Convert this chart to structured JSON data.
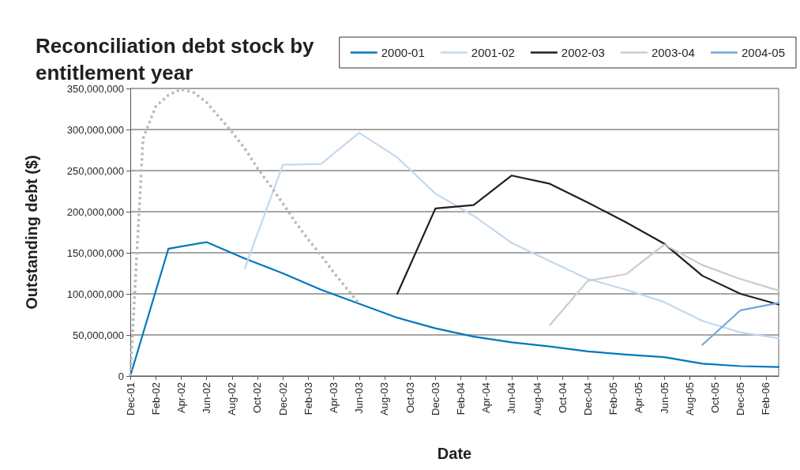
{
  "chart_data": {
    "type": "line",
    "title": "Reconciliation debt stock by entitlement year",
    "xlabel": "Date",
    "ylabel": "Outstanding debt ($)",
    "categories": [
      "Dec-01",
      null,
      "Feb-02",
      null,
      "Apr-02",
      null,
      "Jun-02",
      null,
      "Aug-02",
      null,
      "Oct-02",
      null,
      "Dec-02",
      null,
      "Feb-03",
      null,
      "Apr-03",
      null,
      "Jun-03",
      null,
      "Aug-03",
      null,
      "Oct-03",
      null,
      "Dec-03",
      null,
      "Feb-04",
      null,
      "Apr-04",
      null,
      "Jun-04",
      null,
      "Aug-04",
      null,
      "Oct-04",
      null,
      "Dec-04",
      null,
      "Feb-05",
      null,
      "Apr-05",
      null,
      "Jun-05",
      null,
      "Aug-05",
      null,
      "Oct-05",
      null,
      "Dec-05",
      null,
      "Feb-06",
      null
    ],
    "series": [
      {
        "name": "2000-01",
        "color": "#0077c0",
        "values": [
          0,
          null,
          null,
          155000000,
          null,
          null,
          163000000,
          null,
          null,
          143000000,
          null,
          null,
          125000000,
          null,
          null,
          105000000,
          null,
          null,
          88000000,
          null,
          null,
          71000000,
          null,
          null,
          58000000,
          null,
          null,
          48000000,
          null,
          null,
          41000000,
          null,
          null,
          36000000,
          null,
          null,
          30000000,
          null,
          null,
          26000000,
          null,
          null,
          23000000,
          null,
          null,
          15000000,
          null,
          null,
          12000000,
          null,
          null,
          11000000
        ]
      },
      {
        "name": "2001-02",
        "color": "#c5d8ee",
        "values": [
          null,
          null,
          null,
          null,
          null,
          null,
          null,
          null,
          null,
          131000000,
          null,
          null,
          257000000,
          null,
          null,
          258000000,
          null,
          null,
          296000000,
          null,
          null,
          266000000,
          null,
          null,
          222000000,
          null,
          null,
          195000000,
          null,
          null,
          162000000,
          null,
          null,
          140000000,
          null,
          null,
          118000000,
          null,
          null,
          105000000,
          null,
          null,
          90000000,
          null,
          null,
          67000000,
          null,
          null,
          53000000,
          null,
          null,
          46000000
        ]
      },
      {
        "name": "2002-03",
        "color": "#231f20",
        "values": [
          null,
          null,
          null,
          null,
          null,
          null,
          null,
          null,
          null,
          null,
          null,
          null,
          null,
          null,
          null,
          null,
          null,
          null,
          null,
          null,
          null,
          100000000,
          null,
          null,
          204000000,
          null,
          null,
          208000000,
          null,
          null,
          244000000,
          null,
          null,
          234000000,
          null,
          null,
          211000000,
          null,
          null,
          187000000,
          null,
          null,
          161000000,
          null,
          null,
          122000000,
          null,
          null,
          100000000,
          null,
          null,
          87000000
        ]
      },
      {
        "name": "2003-04",
        "color": "#cccccc",
        "values": [
          null,
          null,
          null,
          null,
          null,
          null,
          null,
          null,
          null,
          null,
          null,
          null,
          null,
          null,
          null,
          null,
          null,
          null,
          null,
          null,
          null,
          null,
          null,
          null,
          null,
          null,
          null,
          null,
          null,
          null,
          null,
          null,
          null,
          62000000,
          null,
          null,
          116000000,
          null,
          null,
          124000000,
          null,
          null,
          160000000,
          null,
          null,
          135000000,
          null,
          null,
          118000000,
          null,
          null,
          104000000
        ]
      },
      {
        "name": "2004-05",
        "color": "#76a5dc",
        "values": [
          null,
          null,
          null,
          null,
          null,
          null,
          null,
          null,
          null,
          null,
          null,
          null,
          null,
          null,
          null,
          null,
          null,
          null,
          null,
          null,
          null,
          null,
          null,
          null,
          null,
          null,
          null,
          null,
          null,
          null,
          null,
          null,
          null,
          null,
          null,
          null,
          null,
          null,
          null,
          null,
          null,
          null,
          null,
          null,
          null,
          38000000,
          null,
          null,
          80000000,
          null,
          null,
          89000000
        ]
      },
      {
        "color": "#b8b8b8",
        "line_style": "dotted",
        "values": [
          0,
          289000000,
          328000000,
          342000000,
          349000000,
          345000000,
          333000000,
          315000000,
          297000000,
          277000000,
          253000000,
          232000000,
          210000000,
          187000000,
          166000000,
          147000000,
          126000000,
          107000000,
          88000000,
          null,
          null,
          null,
          null,
          null,
          null,
          null,
          null,
          null,
          null,
          null,
          null,
          null,
          null,
          null,
          null,
          null,
          null,
          null,
          null,
          null,
          null,
          null,
          null,
          null,
          null,
          null,
          null,
          null,
          null,
          null,
          null,
          null
        ]
      }
    ],
    "ylim": [
      0,
      350000000
    ],
    "yticks": [
      0,
      {
        "value": 50000000,
        "label": "50,000,000"
      },
      {
        "value": 100000000,
        "label": "100,000,000"
      },
      {
        "value": 150000000,
        "label": "150,000,000"
      },
      {
        "value": 200000000,
        "label": "200,000,000"
      },
      {
        "value": 250000000,
        "label": "250,000,000"
      },
      {
        "value": 300000000,
        "label": "300,000,000"
      },
      {
        "value": 350000000,
        "label": "350,000,000"
      }
    ],
    "grid": "y",
    "legend": "top right",
    "marker": "none",
    "line_style": "solid"
  }
}
